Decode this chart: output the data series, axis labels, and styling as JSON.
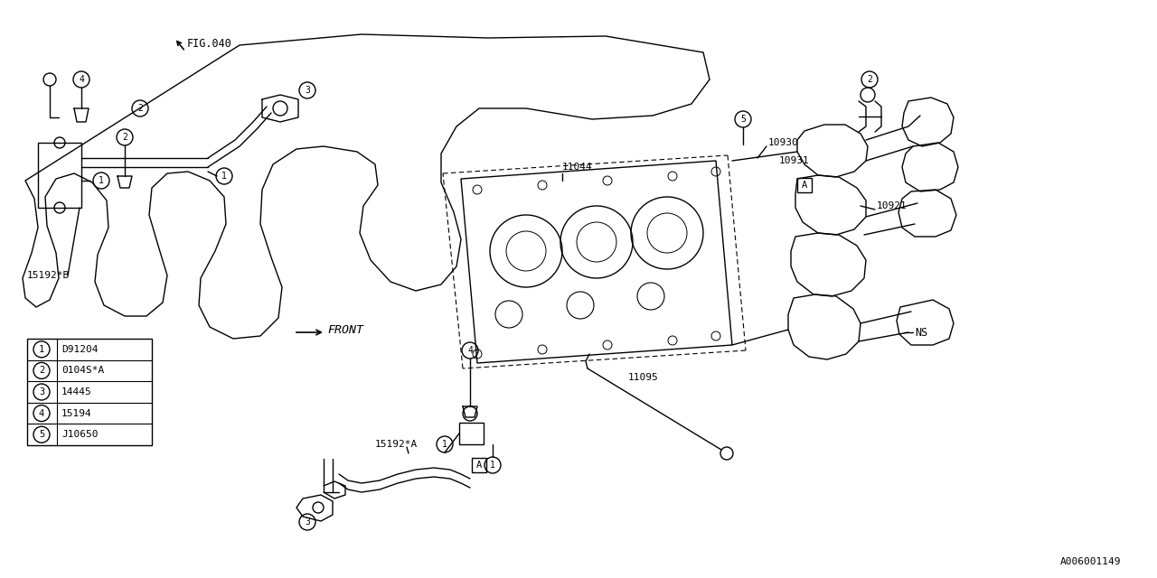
{
  "background_color": "#ffffff",
  "line_color": "#000000",
  "fig_ref": "FIG.040",
  "part_number_ref": "A006001149",
  "front_label": "FRONT",
  "legend_items": [
    {
      "num": "1",
      "code": "D91204"
    },
    {
      "num": "2",
      "code": "0104S*A"
    },
    {
      "num": "3",
      "code": "14445"
    },
    {
      "num": "4",
      "code": "15194"
    },
    {
      "num": "5",
      "code": "J10650"
    }
  ],
  "part_labels": {
    "15192B": "15192*B",
    "15192A": "15192*A",
    "11044": "11044",
    "11095": "11095",
    "10930": "10930",
    "10931": "10931",
    "10921": "10921",
    "NS": "NS"
  }
}
